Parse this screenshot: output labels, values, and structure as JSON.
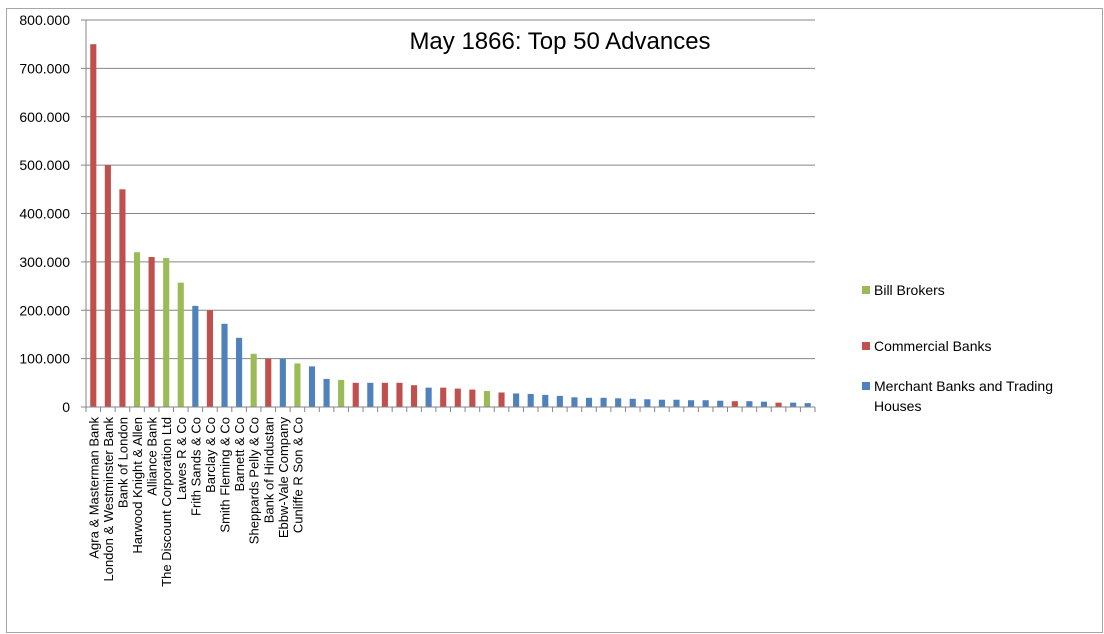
{
  "chart_data": {
    "type": "bar",
    "title": "May 1866: Top 50 Advances",
    "xlabel": "",
    "ylabel": "",
    "ylim": [
      0,
      800000
    ],
    "y_ticks": [
      "0",
      "100.000",
      "200.000",
      "300.000",
      "400.000",
      "500.000",
      "600.000",
      "700.000",
      "800.000"
    ],
    "grid": true,
    "legend_position": "right",
    "groups": [
      {
        "name": "Bill Brokers",
        "color": "#9BBB59"
      },
      {
        "name": "Commercial Banks",
        "color": "#C0504D"
      },
      {
        "name": "Merchant Banks and Trading Houses",
        "color": "#4F81BD"
      }
    ],
    "categories": [
      "Agra & Masterman Bank",
      "London & Westminster Bank",
      "Bank of London",
      "Harwood Knight & Allen",
      "Alliance Bank",
      "The Discount Corporation Ltd",
      "Lawes R & Co",
      "Frith Sands & Co",
      "Barclay & Co",
      "Smith Fleming & Co",
      "Barnett & Co",
      "Sheppards Pelly & Co",
      "Bank of Hindustan",
      "Ebbw-Vale Company",
      "Cunliffe R Son & Co",
      "",
      "",
      "",
      "",
      "",
      "",
      "",
      "",
      "",
      "",
      "",
      "",
      "",
      "",
      "",
      "",
      "",
      "",
      "",
      "",
      "",
      "",
      "",
      "",
      "",
      "",
      "",
      "",
      "",
      "",
      "",
      "",
      "",
      "",
      ""
    ],
    "values": [
      750000,
      500000,
      450000,
      320000,
      310000,
      308000,
      257000,
      209000,
      200000,
      172000,
      143000,
      110000,
      100000,
      100000,
      90000,
      84000,
      58000,
      56000,
      50000,
      50000,
      50000,
      50000,
      45000,
      40000,
      40000,
      38000,
      36000,
      33000,
      30000,
      28000,
      27000,
      25000,
      23000,
      20000,
      19000,
      19000,
      18000,
      17000,
      16000,
      15000,
      15000,
      14000,
      14000,
      13000,
      12000,
      12000,
      11000,
      9000,
      9000,
      8000
    ],
    "groups_by_bar": [
      "Commercial Banks",
      "Commercial Banks",
      "Commercial Banks",
      "Bill Brokers",
      "Commercial Banks",
      "Bill Brokers",
      "Bill Brokers",
      "Merchant Banks and Trading Houses",
      "Commercial Banks",
      "Merchant Banks and Trading Houses",
      "Merchant Banks and Trading Houses",
      "Bill Brokers",
      "Commercial Banks",
      "Merchant Banks and Trading Houses",
      "Bill Brokers",
      "Merchant Banks and Trading Houses",
      "Merchant Banks and Trading Houses",
      "Bill Brokers",
      "Commercial Banks",
      "Merchant Banks and Trading Houses",
      "Commercial Banks",
      "Commercial Banks",
      "Commercial Banks",
      "Merchant Banks and Trading Houses",
      "Commercial Banks",
      "Commercial Banks",
      "Commercial Banks",
      "Bill Brokers",
      "Commercial Banks",
      "Merchant Banks and Trading Houses",
      "Merchant Banks and Trading Houses",
      "Merchant Banks and Trading Houses",
      "Merchant Banks and Trading Houses",
      "Merchant Banks and Trading Houses",
      "Merchant Banks and Trading Houses",
      "Merchant Banks and Trading Houses",
      "Merchant Banks and Trading Houses",
      "Merchant Banks and Trading Houses",
      "Merchant Banks and Trading Houses",
      "Merchant Banks and Trading Houses",
      "Merchant Banks and Trading Houses",
      "Merchant Banks and Trading Houses",
      "Merchant Banks and Trading Houses",
      "Merchant Banks and Trading Houses",
      "Commercial Banks",
      "Merchant Banks and Trading Houses",
      "Merchant Banks and Trading Houses",
      "Commercial Banks",
      "Merchant Banks and Trading Houses",
      "Merchant Banks and Trading Houses"
    ]
  }
}
